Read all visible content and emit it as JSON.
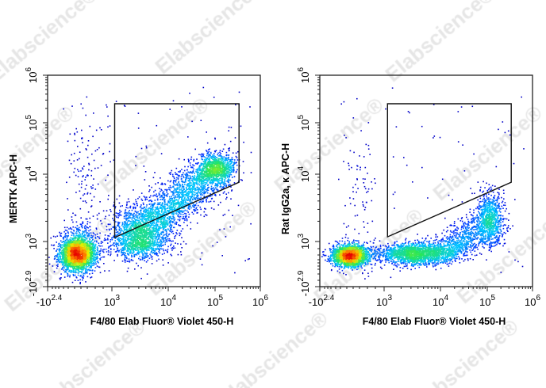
{
  "watermark": "Elabscience®",
  "chart_data": [
    {
      "type": "scatter",
      "subtype": "flow-cytometry-density",
      "xlabel": "F4/80 Elab Fluor® Violet 450-H",
      "ylabel": "MERTK APC-H",
      "x_ticks": [
        {
          "b": "-10",
          "e": "2.4",
          "d": 2
        },
        {
          "b": "10",
          "e": "3",
          "d": 3
        },
        {
          "b": "10",
          "e": "4",
          "d": 4
        },
        {
          "b": "10",
          "e": "5",
          "d": 5
        },
        {
          "b": "10",
          "e": "6",
          "d": 6
        }
      ],
      "y_ticks": [
        {
          "b": "-10",
          "e": "2.9",
          "d": 2
        },
        {
          "b": "10",
          "e": "3",
          "d": 3
        },
        {
          "b": "10",
          "e": "4",
          "d": 4
        },
        {
          "b": "10",
          "e": "5",
          "d": 5
        },
        {
          "b": "10",
          "e": "6",
          "d": 6
        }
      ],
      "xlim": [
        2,
        6
      ],
      "ylim": [
        2,
        6
      ],
      "gate": [
        [
          3.05,
          5.4
        ],
        [
          5.53,
          5.4
        ],
        [
          5.53,
          3.88
        ],
        [
          3.05,
          3.06
        ]
      ],
      "populations": [
        {
          "type": "gauss",
          "x": 2.46,
          "y": 2.75,
          "sx": 0.14,
          "sy": 0.2,
          "n": 2600
        },
        {
          "type": "gauss",
          "x": 3.5,
          "y": 3.05,
          "sx": 0.28,
          "sy": 0.22,
          "n": 1400
        },
        {
          "type": "band",
          "from": [
            3.3,
            3.1
          ],
          "to": [
            5.1,
            4.15
          ],
          "spread": 0.18,
          "n": 2200
        },
        {
          "type": "gauss",
          "x": 5.05,
          "y": 4.1,
          "sx": 0.2,
          "sy": 0.15,
          "n": 700
        },
        {
          "type": "gauss",
          "x": 2.6,
          "y": 3.8,
          "sx": 0.15,
          "sy": 0.7,
          "n": 150
        },
        {
          "type": "uniform",
          "xr": [
            2.2,
            5.8
          ],
          "yr": [
            2.3,
            5.8
          ],
          "n": 120
        }
      ]
    },
    {
      "type": "scatter",
      "subtype": "flow-cytometry-density",
      "xlabel": "F4/80 Elab Fluor® Violet 450-H",
      "ylabel": "Rat IgG2a, κ APC-H",
      "x_ticks": [
        {
          "b": "-10",
          "e": "2.4",
          "d": 2
        },
        {
          "b": "10",
          "e": "3",
          "d": 3
        },
        {
          "b": "10",
          "e": "4",
          "d": 4
        },
        {
          "b": "10",
          "e": "5",
          "d": 5
        },
        {
          "b": "10",
          "e": "6",
          "d": 6
        }
      ],
      "y_ticks": [
        {
          "b": "-10",
          "e": "2.9",
          "d": 2
        },
        {
          "b": "10",
          "e": "3",
          "d": 3
        },
        {
          "b": "10",
          "e": "4",
          "d": 4
        },
        {
          "b": "10",
          "e": "5",
          "d": 5
        },
        {
          "b": "10",
          "e": "6",
          "d": 6
        }
      ],
      "xlim": [
        2,
        6
      ],
      "ylim": [
        2,
        6
      ],
      "gate": [
        [
          3.06,
          5.4
        ],
        [
          5.53,
          5.4
        ],
        [
          5.53,
          3.88
        ],
        [
          3.06,
          3.07
        ]
      ],
      "populations": [
        {
          "type": "gauss",
          "x": 2.46,
          "y": 2.7,
          "sx": 0.14,
          "sy": 0.12,
          "n": 2200
        },
        {
          "type": "gauss",
          "x": 3.55,
          "y": 2.74,
          "sx": 0.35,
          "sy": 0.12,
          "n": 1800
        },
        {
          "type": "band",
          "from": [
            4.0,
            2.8
          ],
          "to": [
            5.1,
            3.3
          ],
          "spread": 0.15,
          "n": 900
        },
        {
          "type": "gauss",
          "x": 5.05,
          "y": 3.35,
          "sx": 0.15,
          "sy": 0.2,
          "n": 700
        },
        {
          "type": "gauss",
          "x": 2.6,
          "y": 3.6,
          "sx": 0.15,
          "sy": 0.6,
          "n": 80
        },
        {
          "type": "uniform",
          "xr": [
            2.2,
            5.8
          ],
          "yr": [
            2.3,
            5.8
          ],
          "n": 70
        }
      ]
    }
  ]
}
